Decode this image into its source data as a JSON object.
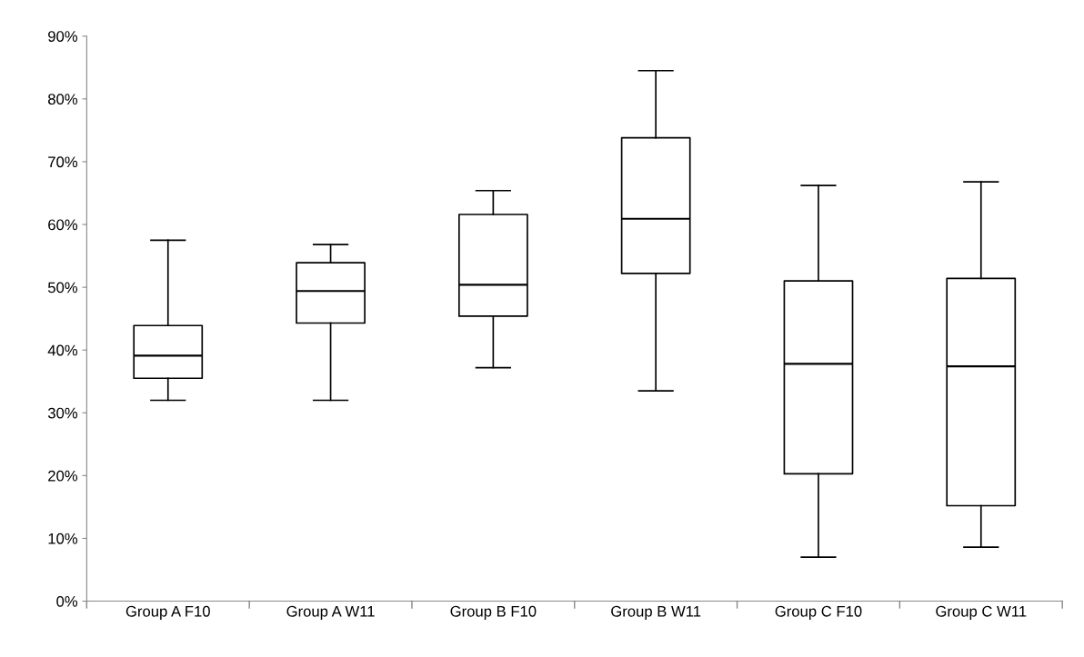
{
  "chart_data": {
    "type": "box",
    "categories": [
      "Group A F10",
      "Group A W11",
      "Group B F10",
      "Group B W11",
      "Group C F10",
      "Group C W11"
    ],
    "boxes": [
      {
        "low": 32.0,
        "q1": 35.5,
        "median": 39.1,
        "q3": 43.9,
        "high": 57.5
      },
      {
        "low": 32.0,
        "q1": 44.3,
        "median": 49.4,
        "q3": 53.9,
        "high": 56.8
      },
      {
        "low": 37.2,
        "q1": 45.4,
        "median": 50.4,
        "q3": 61.6,
        "high": 65.4
      },
      {
        "low": 33.5,
        "q1": 52.2,
        "median": 60.9,
        "q3": 73.8,
        "high": 84.5
      },
      {
        "low": 7.0,
        "q1": 20.3,
        "median": 37.8,
        "q3": 51.0,
        "high": 66.2
      },
      {
        "low": 8.6,
        "q1": 15.2,
        "median": 37.4,
        "q3": 51.4,
        "high": 66.8
      }
    ],
    "color": "#000000",
    "ylim": [
      0,
      90
    ],
    "yticks": [
      {
        "value": 0,
        "label": "0%"
      },
      {
        "value": 10,
        "label": "10%"
      },
      {
        "value": 20,
        "label": "20%"
      },
      {
        "value": 30,
        "label": "30%"
      },
      {
        "value": 40,
        "label": "40%"
      },
      {
        "value": 50,
        "label": "50%"
      },
      {
        "value": 60,
        "label": "60%"
      },
      {
        "value": 70,
        "label": "70%"
      },
      {
        "value": 80,
        "label": "80%"
      },
      {
        "value": 90,
        "label": "90%"
      }
    ],
    "grid": false
  }
}
